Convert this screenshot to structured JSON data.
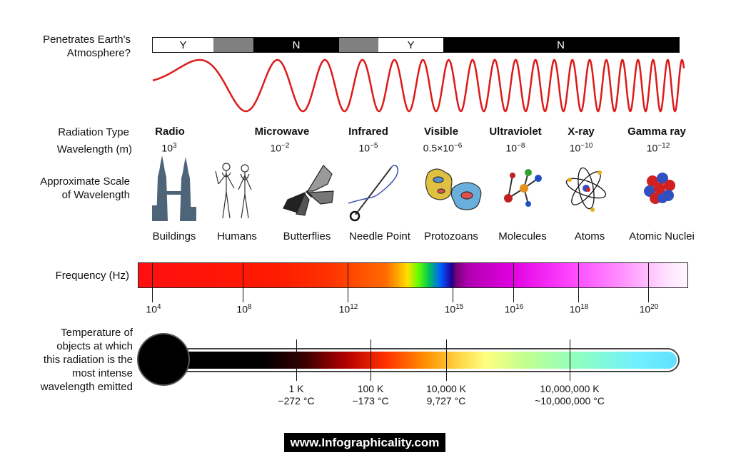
{
  "atmosphere": {
    "label_line1": "Penetrates Earth's",
    "label_line2": "Atmosphere?",
    "segments": [
      {
        "text": "Y",
        "color": "#ffffff"
      },
      {
        "text": "",
        "color": "#808080"
      },
      {
        "text": "N",
        "color": "#000000"
      },
      {
        "text": "",
        "color": "#808080"
      },
      {
        "text": "Y",
        "color": "#ffffff"
      },
      {
        "text": "N",
        "color": "#000000"
      }
    ]
  },
  "labels": {
    "radiation_type": "Radiation Type",
    "wavelength": "Wavelength (m)",
    "scale_line1": "Approximate Scale",
    "scale_line2": "of Wavelength",
    "frequency": "Frequency (Hz)",
    "temp_line1": "Temperature of",
    "temp_line2": "objects at which",
    "temp_line3": "this radiation is the",
    "temp_line4": "most intense",
    "temp_line5": "wavelength emitted"
  },
  "radiation_types": [
    {
      "name": "Radio",
      "wl_base": "10",
      "wl_exp": "3"
    },
    {
      "name": "Microwave",
      "wl_base": "10",
      "wl_exp": "−2"
    },
    {
      "name": "Infrared",
      "wl_base": "10",
      "wl_exp": "−5"
    },
    {
      "name": "Visible",
      "wl_base": "0.5×10",
      "wl_exp": "−6"
    },
    {
      "name": "Ultraviolet",
      "wl_base": "10",
      "wl_exp": "−8"
    },
    {
      "name": "X-ray",
      "wl_base": "10",
      "wl_exp": "−10"
    },
    {
      "name": "Gamma ray",
      "wl_base": "10",
      "wl_exp": "−12"
    }
  ],
  "scale_items": [
    "Buildings",
    "Humans",
    "Butterflies",
    "Needle Point",
    "Protozoans",
    "Molecules",
    "Atoms",
    "Atomic Nuclei"
  ],
  "frequency_ticks": [
    {
      "base": "10",
      "exp": "4"
    },
    {
      "base": "10",
      "exp": "8"
    },
    {
      "base": "10",
      "exp": "12"
    },
    {
      "base": "10",
      "exp": "15"
    },
    {
      "base": "10",
      "exp": "16"
    },
    {
      "base": "10",
      "exp": "18"
    },
    {
      "base": "10",
      "exp": "20"
    }
  ],
  "temperatures": [
    {
      "k": "1 K",
      "c": "−272 °C"
    },
    {
      "k": "100 K",
      "c": "−173 °C"
    },
    {
      "k": "10,000 K",
      "c": "9,727 °C"
    },
    {
      "k": "10,000,000 K",
      "c": "~10,000,000 °C"
    }
  ],
  "footer": "www.Infographicality.com",
  "colors": {
    "wave": "#dd1a1a"
  }
}
